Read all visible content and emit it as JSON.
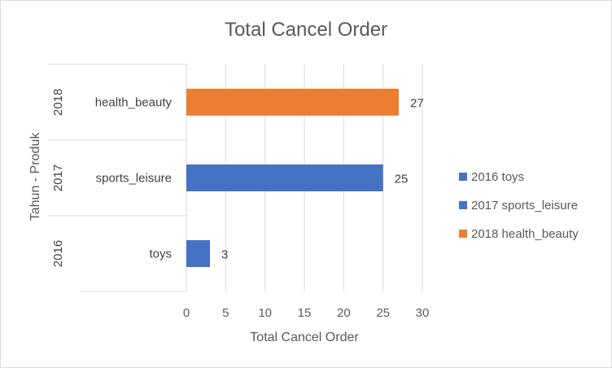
{
  "chart_data": {
    "type": "bar",
    "orientation": "horizontal",
    "title": "Total Cancel Order",
    "xlabel": "Total Cancel Order",
    "ylabel": "Tahun - Produk",
    "xlim": [
      0,
      30
    ],
    "xticks": [
      "0",
      "5",
      "10",
      "15",
      "20",
      "25",
      "30"
    ],
    "grid": true,
    "legend_position": "right",
    "categories": [
      {
        "year": "2016",
        "product": "toys",
        "value": 3,
        "value_label": "3",
        "color": "#4472c4"
      },
      {
        "year": "2017",
        "product": "sports_leisure",
        "value": 25,
        "value_label": "25",
        "color": "#4472c4"
      },
      {
        "year": "2018",
        "product": "health_beauty",
        "value": 27,
        "value_label": "27",
        "color": "#ed7d31"
      }
    ],
    "legend": [
      {
        "label": "2016 toys",
        "color": "#4472c4"
      },
      {
        "label": "2017 sports_leisure",
        "color": "#4472c4"
      },
      {
        "label": "2018 health_beauty",
        "color": "#ed7d31"
      }
    ]
  }
}
